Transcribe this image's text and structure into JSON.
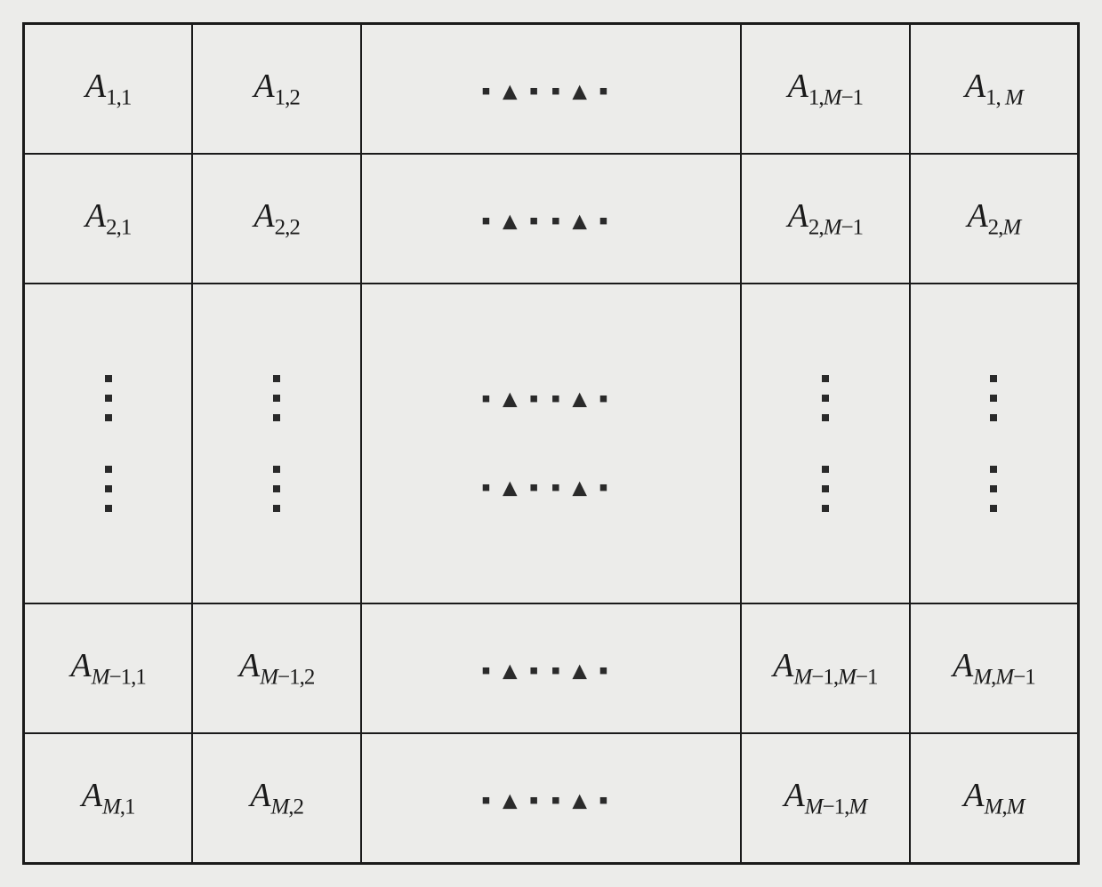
{
  "matrix": {
    "type": "table",
    "description": "Generic M×M matrix notation diagram",
    "background_color": "#ececea",
    "border_color": "#1a1a1a",
    "border_width": 3,
    "inner_border_width": 2,
    "text_color": "#1a1a1a",
    "font_family": "Times New Roman",
    "font_style": "italic",
    "base_fontsize": 38,
    "subscript_fontsize": 25,
    "dots_fontsize": 30,
    "dots_color": "#2a2a2a",
    "columns": [
      {
        "width_pct": 16,
        "type": "narrow"
      },
      {
        "width_pct": 16,
        "type": "narrow"
      },
      {
        "width_pct": 36,
        "type": "wide"
      },
      {
        "width_pct": 16,
        "type": "narrow"
      },
      {
        "width_pct": 16,
        "type": "narrow"
      }
    ],
    "rows": [
      {
        "height_pct": 15.5,
        "type": "normal"
      },
      {
        "height_pct": 15.5,
        "type": "normal"
      },
      {
        "height_pct": 38,
        "type": "tall"
      },
      {
        "height_pct": 15.5,
        "type": "normal"
      },
      {
        "height_pct": 15.5,
        "type": "normal"
      }
    ],
    "cells": {
      "r1c1": {
        "base": "A",
        "sub": "1,1"
      },
      "r1c2": {
        "base": "A",
        "sub": "1,2"
      },
      "r1c3": {
        "ellipsis": "horizontal"
      },
      "r1c4": {
        "base": "A",
        "sub_html": "1,<span class='ital'>M</span>−1"
      },
      "r1c5": {
        "base": "A",
        "sub_html": "1, <span class='ital'>M</span>"
      },
      "r2c1": {
        "base": "A",
        "sub": "2,1"
      },
      "r2c2": {
        "base": "A",
        "sub": "2,2"
      },
      "r2c3": {
        "ellipsis": "horizontal"
      },
      "r2c4": {
        "base": "A",
        "sub_html": "2,<span class='ital'>M</span>−1"
      },
      "r2c5": {
        "base": "A",
        "sub_html": "2,<span class='ital'>M</span>"
      },
      "r3c1": {
        "ellipsis": "vertical-double"
      },
      "r3c2": {
        "ellipsis": "vertical-double"
      },
      "r3c3": {
        "ellipsis": "horizontal-double"
      },
      "r3c4": {
        "ellipsis": "vertical-double"
      },
      "r3c5": {
        "ellipsis": "vertical-double"
      },
      "r4c1": {
        "base": "A",
        "sub_html": "<span class='ital'>M</span>−1,1"
      },
      "r4c2": {
        "base": "A",
        "sub_html": "<span class='ital'>M</span>−1,2"
      },
      "r4c3": {
        "ellipsis": "horizontal"
      },
      "r4c4": {
        "base": "A",
        "sub_html": "<span class='ital'>M</span>−1,<span class='ital'>M</span>−1"
      },
      "r4c5": {
        "base": "A",
        "sub_html": "<span class='ital'>M</span>,<span class='ital'>M</span>−1"
      },
      "r5c1": {
        "base": "A",
        "sub_html": "<span class='ital'>M</span>,1"
      },
      "r5c2": {
        "base": "A",
        "sub_html": "<span class='ital'>M</span>,2"
      },
      "r5c3": {
        "ellipsis": "horizontal"
      },
      "r5c4": {
        "base": "A",
        "sub_html": "<span class='ital'>M</span>−1,<span class='ital'>M</span>"
      },
      "r5c5": {
        "base": "A",
        "sub_html": "<span class='ital'>M</span>,<span class='ital'>M</span>"
      }
    },
    "hdots_glyph": "▪▴▪▪▴▪",
    "vdots_count": 3
  }
}
